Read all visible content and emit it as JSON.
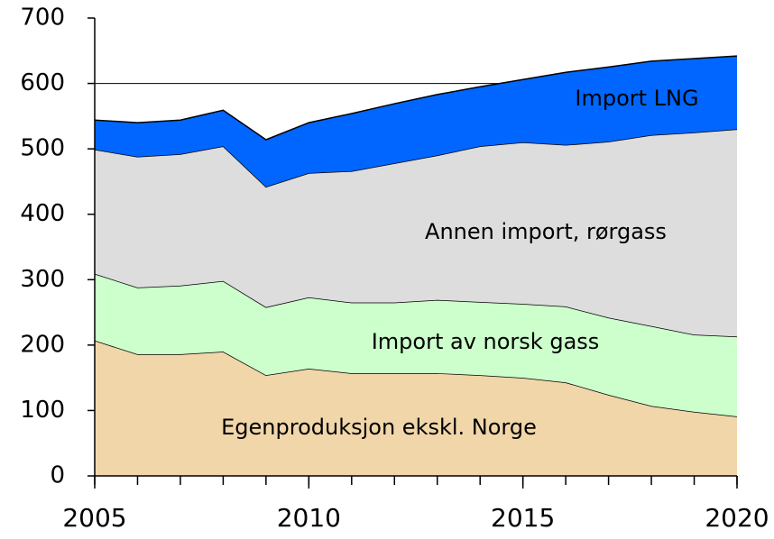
{
  "chart_data": {
    "type": "stacked_area",
    "x": [
      2005,
      2006,
      2007,
      2008,
      2009,
      2010,
      2011,
      2012,
      2013,
      2014,
      2015,
      2016,
      2017,
      2018,
      2019,
      2020
    ],
    "series": [
      {
        "name": "Egenproduksjon ekskl. Norge",
        "color": "#f1d6aa",
        "values": [
          207,
          186,
          186,
          190,
          154,
          164,
          157,
          157,
          157,
          154,
          150,
          143,
          124,
          107,
          98,
          91
        ]
      },
      {
        "name": "Import av norsk gass",
        "color": "#ccffcc",
        "values": [
          102,
          102,
          105,
          108,
          104,
          109,
          108,
          108,
          112,
          112,
          113,
          116,
          118,
          122,
          118,
          122
        ]
      },
      {
        "name": "Annen import, rørgass",
        "color": "#dddddd",
        "values": [
          190,
          200,
          201,
          206,
          184,
          190,
          201,
          213,
          221,
          238,
          247,
          247,
          269,
          292,
          309,
          317
        ]
      },
      {
        "name": "Import LNG",
        "color": "#0066ff",
        "values": [
          45,
          52,
          52,
          55,
          72,
          77,
          88,
          91,
          93,
          91,
          96,
          111,
          114,
          113,
          113,
          112
        ]
      }
    ],
    "xlim": [
      2005,
      2020
    ],
    "xticks": [
      2005,
      2010,
      2015,
      2020
    ],
    "ylim": [
      0,
      700
    ],
    "yticks": [
      0,
      100,
      200,
      300,
      400,
      500,
      600,
      700
    ],
    "grid": true
  }
}
